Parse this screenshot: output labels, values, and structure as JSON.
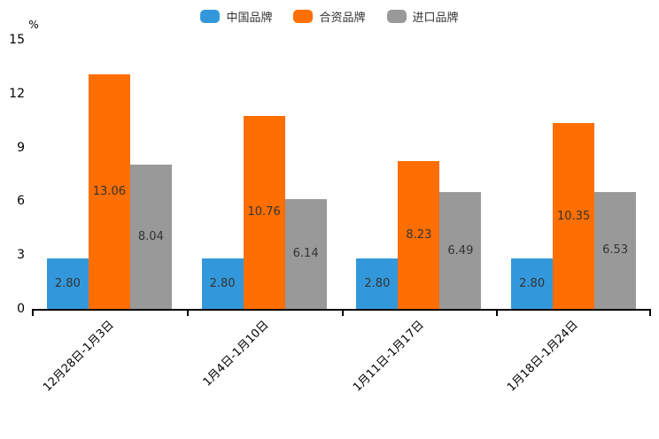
{
  "chart_data": {
    "type": "bar",
    "title": "",
    "y_axis_unit": "%",
    "categories": [
      "12月28日-1月3日",
      "1月4日-1月10日",
      "1月11日-1月17日",
      "1月18日-1月24日"
    ],
    "series": [
      {
        "name": "中国品牌",
        "color": "#3398DB",
        "values": [
          2.8,
          2.8,
          2.8,
          2.8
        ]
      },
      {
        "name": "合资品牌",
        "color": "#FF6E00",
        "values": [
          13.06,
          10.76,
          8.23,
          10.35
        ]
      },
      {
        "name": "进口品牌",
        "color": "#999999",
        "values": [
          8.04,
          6.14,
          6.49,
          6.53
        ]
      }
    ],
    "ylim": [
      0,
      15
    ],
    "yticks": [
      0,
      3,
      6,
      9,
      12,
      15
    ],
    "grid": false,
    "legend_position": "top-center",
    "value_label_position": "inside-center",
    "value_label_decimals": 2,
    "x_label_rotation_deg": 45
  },
  "colors": {
    "axis": "#000000",
    "value_label_text": "#333333",
    "tick_label_text": "#000000",
    "background": "#ffffff"
  }
}
